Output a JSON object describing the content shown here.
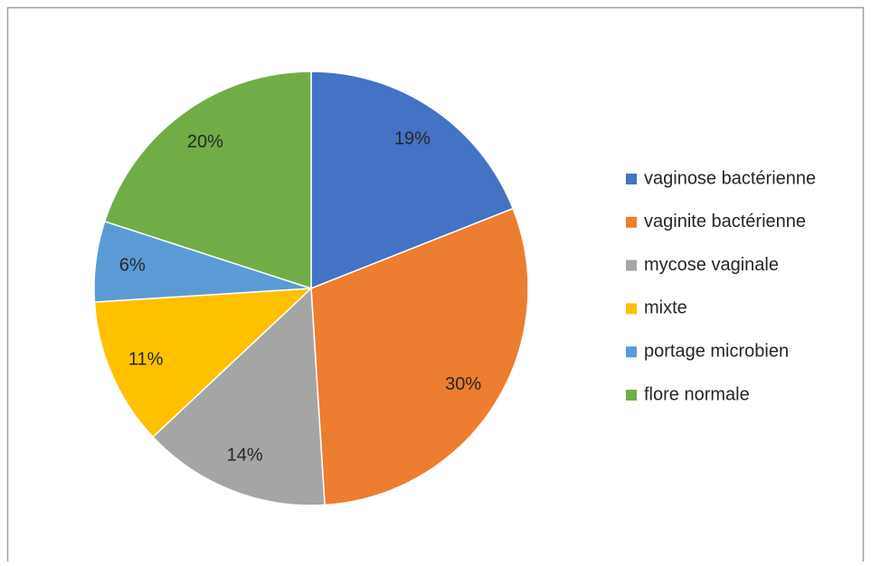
{
  "chart_data": {
    "type": "pie",
    "categories": [
      "vaginose bactérienne",
      "vaginite bactérienne",
      "mycose vaginale",
      "mixte",
      "portage microbien",
      "flore normale"
    ],
    "values": [
      19,
      30,
      14,
      11,
      6,
      20
    ],
    "value_labels": [
      "19%",
      "30%",
      "14%",
      "11%",
      "6%",
      "20%"
    ],
    "colors": [
      "#4472c4",
      "#ed7d31",
      "#a5a5a5",
      "#ffc000",
      "#5b9bd5",
      "#70ad47"
    ],
    "legend": "right"
  }
}
